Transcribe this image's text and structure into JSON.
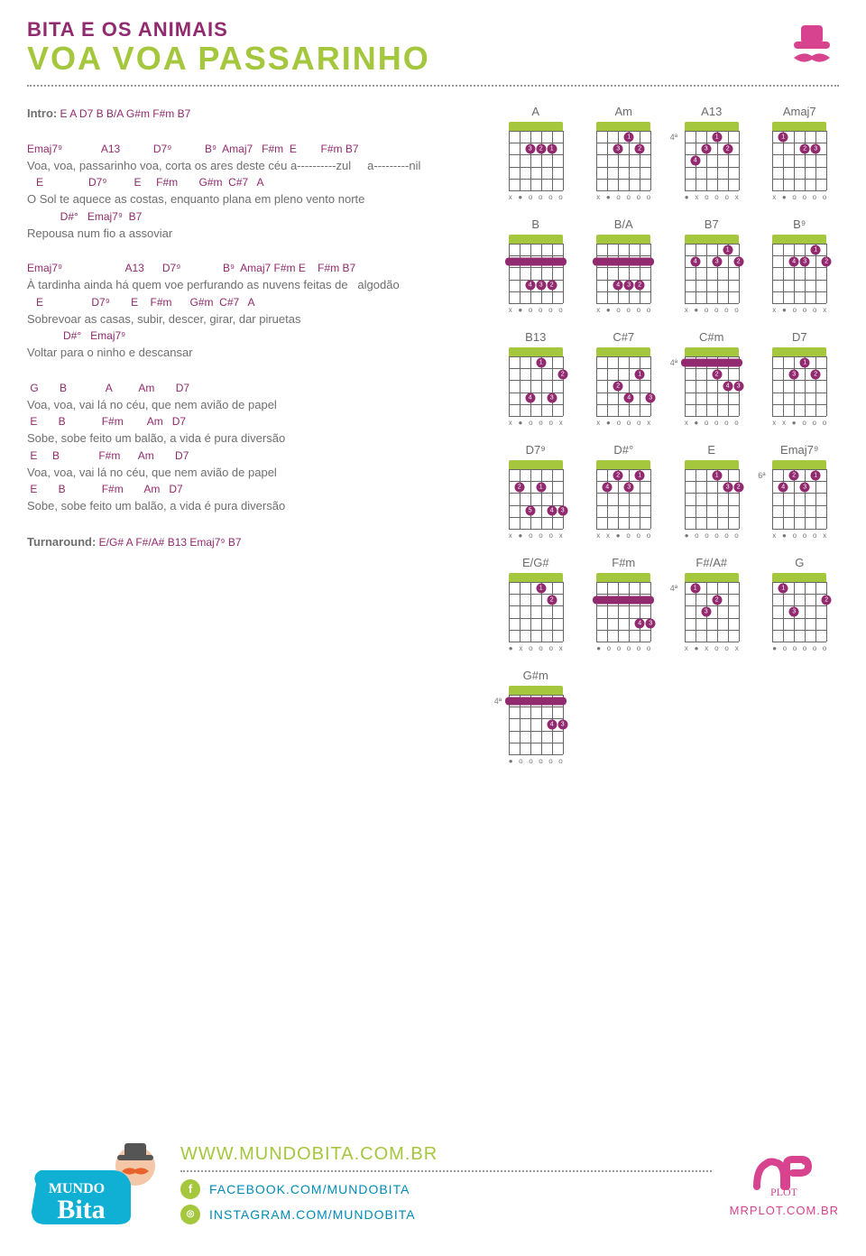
{
  "header": {
    "artist": "BITA E OS ANIMAIS",
    "title": "VOA VOA PASSARINHO"
  },
  "colors": {
    "purple": "#912a6e",
    "green": "#a5c73d",
    "blue": "#008bb8",
    "pink": "#d7438f",
    "gray": "#6f6f6f"
  },
  "song": {
    "intro_label": "Intro:",
    "intro_chords": " E  A  D7  B  B/A  G#m  F#m  B7",
    "turnaround_label": "Turnaround:",
    "turnaround_chords": " E/G#  A  F#/A#  B13  Emaj7⁹  B7",
    "verses": [
      {
        "lines": [
          {
            "chords": "Emaj7⁹             A13           D7⁹           B⁹  Amaj7   F#m  E        F#m B7",
            "lyrics": "Voa, voa, passarinho voa, corta os ares deste céu a----------zul     a---------nil"
          },
          {
            "chords": "   E               D7⁹         E     F#m       G#m  C#7   A",
            "lyrics": "O Sol te aquece as costas, enquanto plana em pleno vento norte"
          },
          {
            "chords": "           D#°   Emaj7⁹  B7",
            "lyrics": "Repousa num fio a assoviar"
          }
        ]
      },
      {
        "lines": [
          {
            "chords": "Emaj7⁹                     A13      D7⁹              B⁹  Amaj7 F#m E    F#m B7",
            "lyrics": "À tardinha ainda há quem voe perfurando as nuvens feitas de   algodão"
          },
          {
            "chords": "   E                D7⁹       E    F#m      G#m  C#7   A",
            "lyrics": "Sobrevoar as casas, subir, descer, girar, dar piruetas"
          },
          {
            "chords": "            D#°   Emaj7⁹",
            "lyrics": "Voltar para o ninho e descansar"
          }
        ]
      },
      {
        "lines": [
          {
            "chords": " G       B             A         Am       D7",
            "lyrics": "Voa, voa, vai lá no céu, que nem avião de papel"
          },
          {
            "chords": " E       B            F#m        Am   D7",
            "lyrics": "Sobe, sobe feito um balão, a vida é pura diversão"
          },
          {
            "chords": " E     B             F#m      Am       D7",
            "lyrics": "Voa, voa, vai lá no céu, que nem avião de papel"
          },
          {
            "chords": " E       B            F#m       Am   D7",
            "lyrics": "Sobe, sobe feito um balão, a vida é pura diversão"
          }
        ]
      }
    ]
  },
  "chord_diagrams": [
    {
      "name": "A",
      "fret_label": null,
      "barre": null,
      "dots": [
        {
          "s": 1,
          "f": 2,
          "n": "1"
        },
        {
          "s": 2,
          "f": 2,
          "n": "2"
        },
        {
          "s": 3,
          "f": 2,
          "n": "3"
        }
      ],
      "markers": [
        "x",
        "●",
        "o",
        "o",
        "o",
        "o"
      ]
    },
    {
      "name": "Am",
      "fret_label": null,
      "barre": null,
      "dots": [
        {
          "s": 2,
          "f": 1,
          "n": "1"
        },
        {
          "s": 1,
          "f": 2,
          "n": "2"
        },
        {
          "s": 3,
          "f": 2,
          "n": "3"
        }
      ],
      "markers": [
        "x",
        "●",
        "o",
        "o",
        "o",
        "o"
      ]
    },
    {
      "name": "A13",
      "fret_label": "4ª",
      "barre": null,
      "dots": [
        {
          "s": 2,
          "f": 1,
          "n": "1"
        },
        {
          "s": 1,
          "f": 2,
          "n": "2"
        },
        {
          "s": 3,
          "f": 2,
          "n": "3"
        },
        {
          "s": 4,
          "f": 3,
          "n": "4"
        }
      ],
      "markers": [
        "●",
        "x",
        "o",
        "o",
        "o",
        "x"
      ]
    },
    {
      "name": "Amaj7",
      "fret_label": null,
      "barre": null,
      "dots": [
        {
          "s": 4,
          "f": 1,
          "n": "1"
        },
        {
          "s": 2,
          "f": 2,
          "n": "2"
        },
        {
          "s": 1,
          "f": 2,
          "n": "3"
        }
      ],
      "markers": [
        "x",
        "●",
        "o",
        "o",
        "o",
        "o"
      ]
    },
    {
      "name": "B",
      "fret_label": null,
      "barre": {
        "from": 0,
        "to": 5,
        "f": 2
      },
      "dots": [
        {
          "s": 1,
          "f": 4,
          "n": "2"
        },
        {
          "s": 2,
          "f": 4,
          "n": "3"
        },
        {
          "s": 3,
          "f": 4,
          "n": "4"
        }
      ],
      "markers": [
        "x",
        "●",
        "o",
        "o",
        "o",
        "o"
      ]
    },
    {
      "name": "B/A",
      "fret_label": null,
      "barre": {
        "from": 0,
        "to": 5,
        "f": 2
      },
      "dots": [
        {
          "s": 1,
          "f": 4,
          "n": "2"
        },
        {
          "s": 2,
          "f": 4,
          "n": "3"
        },
        {
          "s": 3,
          "f": 4,
          "n": "4"
        }
      ],
      "markers": [
        "x",
        "●",
        "o",
        "o",
        "o",
        "o"
      ]
    },
    {
      "name": "B7",
      "fret_label": null,
      "barre": null,
      "dots": [
        {
          "s": 1,
          "f": 1,
          "n": "1"
        },
        {
          "s": 0,
          "f": 2,
          "n": "2"
        },
        {
          "s": 2,
          "f": 2,
          "n": "3"
        },
        {
          "s": 4,
          "f": 2,
          "n": "4"
        }
      ],
      "markers": [
        "x",
        "●",
        "o",
        "o",
        "o",
        "o"
      ]
    },
    {
      "name": "B⁹",
      "fret_label": null,
      "barre": null,
      "dots": [
        {
          "s": 1,
          "f": 1,
          "n": "1"
        },
        {
          "s": 0,
          "f": 2,
          "n": "2"
        },
        {
          "s": 2,
          "f": 2,
          "n": "3"
        },
        {
          "s": 3,
          "f": 2,
          "n": "4"
        }
      ],
      "markers": [
        "x",
        "●",
        "o",
        "o",
        "o",
        "x"
      ]
    },
    {
      "name": "B13",
      "fret_label": null,
      "barre": null,
      "dots": [
        {
          "s": 2,
          "f": 1,
          "n": "1"
        },
        {
          "s": 0,
          "f": 2,
          "n": "2"
        },
        {
          "s": 1,
          "f": 4,
          "n": "3"
        },
        {
          "s": 3,
          "f": 4,
          "n": "4"
        }
      ],
      "markers": [
        "x",
        "●",
        "o",
        "o",
        "o",
        "x"
      ]
    },
    {
      "name": "C#7",
      "fret_label": null,
      "barre": null,
      "dots": [
        {
          "s": 1,
          "f": 2,
          "n": "1"
        },
        {
          "s": 3,
          "f": 3,
          "n": "2"
        },
        {
          "s": 0,
          "f": 4,
          "n": "3"
        },
        {
          "s": 2,
          "f": 4,
          "n": "4"
        }
      ],
      "markers": [
        "x",
        "●",
        "o",
        "o",
        "o",
        "x"
      ]
    },
    {
      "name": "C#m",
      "fret_label": "4ª",
      "barre": {
        "from": 0,
        "to": 5,
        "f": 1
      },
      "dots": [
        {
          "s": 2,
          "f": 2,
          "n": "2"
        },
        {
          "s": 0,
          "f": 3,
          "n": "3"
        },
        {
          "s": 1,
          "f": 3,
          "n": "4"
        }
      ],
      "markers": [
        "x",
        "●",
        "o",
        "o",
        "o",
        "o"
      ]
    },
    {
      "name": "D7",
      "fret_label": null,
      "barre": null,
      "dots": [
        {
          "s": 2,
          "f": 1,
          "n": "1"
        },
        {
          "s": 1,
          "f": 2,
          "n": "2"
        },
        {
          "s": 3,
          "f": 2,
          "n": "3"
        }
      ],
      "markers": [
        "x",
        "x",
        "●",
        "o",
        "o",
        "o"
      ]
    },
    {
      "name": "D7⁹",
      "fret_label": null,
      "barre": null,
      "dots": [
        {
          "s": 2,
          "f": 2,
          "n": "1"
        },
        {
          "s": 4,
          "f": 2,
          "n": "2"
        },
        {
          "s": 0,
          "f": 4,
          "n": "3"
        },
        {
          "s": 1,
          "f": 4,
          "n": "4"
        },
        {
          "s": 3,
          "f": 4,
          "n": "5"
        }
      ],
      "markers": [
        "x",
        "●",
        "o",
        "o",
        "o",
        "x"
      ]
    },
    {
      "name": "D#°",
      "fret_label": null,
      "barre": null,
      "dots": [
        {
          "s": 1,
          "f": 1,
          "n": "1"
        },
        {
          "s": 3,
          "f": 1,
          "n": "2"
        },
        {
          "s": 2,
          "f": 2,
          "n": "3"
        },
        {
          "s": 4,
          "f": 2,
          "n": "4"
        }
      ],
      "markers": [
        "x",
        "x",
        "●",
        "o",
        "o",
        "o"
      ]
    },
    {
      "name": "E",
      "fret_label": null,
      "barre": null,
      "dots": [
        {
          "s": 2,
          "f": 1,
          "n": "1"
        },
        {
          "s": 0,
          "f": 2,
          "n": "2"
        },
        {
          "s": 1,
          "f": 2,
          "n": "3"
        }
      ],
      "markers": [
        "●",
        "o",
        "o",
        "o",
        "o",
        "o"
      ]
    },
    {
      "name": "Emaj7⁹",
      "fret_label": "6ª",
      "barre": null,
      "dots": [
        {
          "s": 1,
          "f": 1,
          "n": "1"
        },
        {
          "s": 3,
          "f": 1,
          "n": "2"
        },
        {
          "s": 2,
          "f": 2,
          "n": "3"
        },
        {
          "s": 4,
          "f": 2,
          "n": "4"
        }
      ],
      "markers": [
        "x",
        "●",
        "o",
        "o",
        "o",
        "x"
      ]
    },
    {
      "name": "E/G#",
      "fret_label": null,
      "barre": null,
      "dots": [
        {
          "s": 2,
          "f": 1,
          "n": "1"
        },
        {
          "s": 1,
          "f": 2,
          "n": "2"
        }
      ],
      "markers": [
        "●",
        "x",
        "o",
        "o",
        "o",
        "x"
      ]
    },
    {
      "name": "F#m",
      "fret_label": null,
      "barre": {
        "from": 0,
        "to": 5,
        "f": 2
      },
      "dots": [
        {
          "s": 0,
          "f": 4,
          "n": "3"
        },
        {
          "s": 1,
          "f": 4,
          "n": "4"
        }
      ],
      "markers": [
        "●",
        "o",
        "o",
        "o",
        "o",
        "o"
      ]
    },
    {
      "name": "F#/A#",
      "fret_label": "4ª",
      "barre": null,
      "dots": [
        {
          "s": 4,
          "f": 1,
          "n": "1"
        },
        {
          "s": 2,
          "f": 2,
          "n": "2"
        },
        {
          "s": 3,
          "f": 3,
          "n": "3"
        }
      ],
      "markers": [
        "x",
        "●",
        "x",
        "o",
        "o",
        "x"
      ]
    },
    {
      "name": "G",
      "fret_label": null,
      "barre": null,
      "dots": [
        {
          "s": 4,
          "f": 1,
          "n": "1"
        },
        {
          "s": 0,
          "f": 2,
          "n": "2"
        },
        {
          "s": 3,
          "f": 3,
          "n": "3"
        }
      ],
      "markers": [
        "●",
        "o",
        "o",
        "o",
        "o",
        "o"
      ]
    },
    {
      "name": "G#m",
      "fret_label": "4ª",
      "barre": {
        "from": 0,
        "to": 5,
        "f": 1
      },
      "dots": [
        {
          "s": 0,
          "f": 3,
          "n": "3"
        },
        {
          "s": 1,
          "f": 3,
          "n": "4"
        }
      ],
      "markers": [
        "●",
        "o",
        "o",
        "o",
        "o",
        "o"
      ]
    }
  ],
  "footer": {
    "main_url": "WWW.MUNDOBITA.COM.BR",
    "facebook": "FACEBOOK.COM/MUNDOBITA",
    "instagram": "INSTAGRAM.COM/MUNDOBITA",
    "mrplot_url": "MRPLOT.COM.BR",
    "logo_text": "MUNDO Bita",
    "mrplot_text": "Mr. PLOT"
  }
}
